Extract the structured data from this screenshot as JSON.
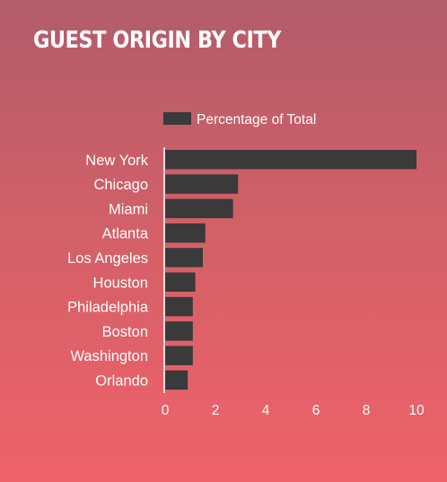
{
  "chart_data": {
    "type": "bar",
    "orientation": "horizontal",
    "title": "GUEST ORIGIN BY CITY",
    "categories": [
      "New York",
      "Chicago",
      "Miami",
      "Atlanta",
      "Los Angeles",
      "Houston",
      "Philadelphia",
      "Boston",
      "Washington",
      "Orlando"
    ],
    "series": [
      {
        "name": "Percentage of Total",
        "values": [
          10,
          2.9,
          2.7,
          1.6,
          1.5,
          1.2,
          1.1,
          1.1,
          1.1,
          0.9
        ]
      }
    ],
    "xlim": [
      0,
      10
    ],
    "xticks": [
      "0",
      "2",
      "4",
      "6",
      "8",
      "10"
    ],
    "grid": false,
    "legend_position": "top"
  },
  "colors": {
    "bar": "#3a3a3a",
    "text": "#ffffff",
    "background_top": "#b35c6b",
    "background_bottom": "#f0626a"
  }
}
